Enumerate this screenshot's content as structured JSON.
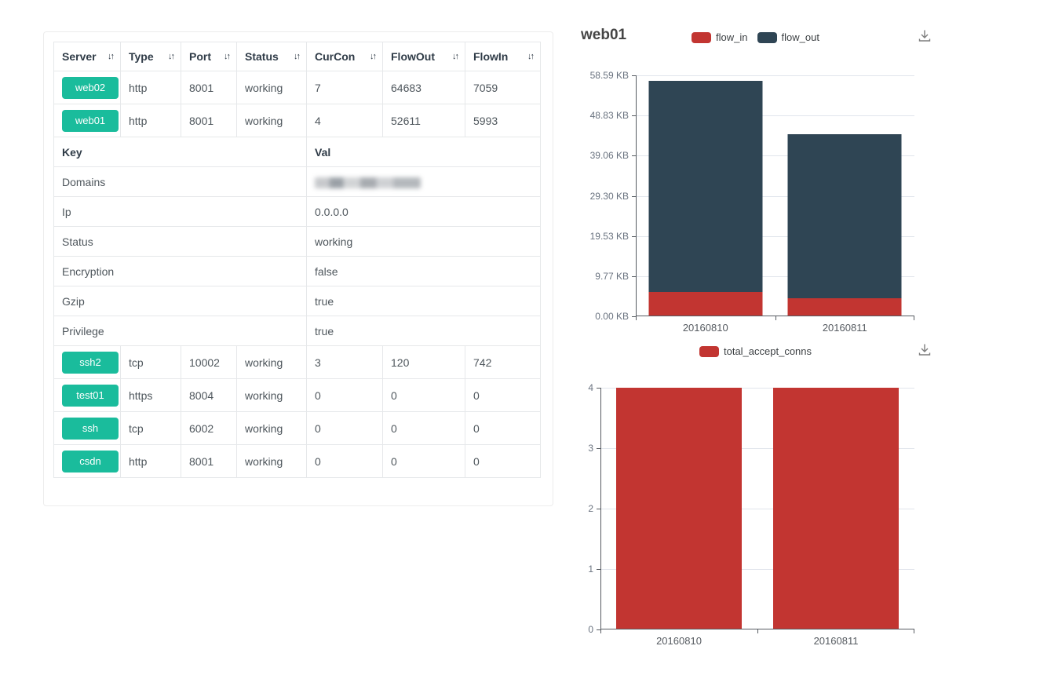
{
  "server_panel": {
    "sort_icon_glyph": "↓↑",
    "columns": [
      {
        "label": "Server"
      },
      {
        "label": "Type"
      },
      {
        "label": "Port"
      },
      {
        "label": "Status"
      },
      {
        "label": "CurCon"
      },
      {
        "label": "FlowOut"
      },
      {
        "label": "FlowIn"
      }
    ],
    "rows_top": [
      {
        "server": "web02",
        "type": "http",
        "port": "8001",
        "status": "working",
        "curcon": "7",
        "flowout": "64683",
        "flowin": "7059"
      },
      {
        "server": "web01",
        "type": "http",
        "port": "8001",
        "status": "working",
        "curcon": "4",
        "flowout": "52611",
        "flowin": "5993"
      }
    ],
    "detail": {
      "key_header": "Key",
      "val_header": "Val",
      "rows": [
        {
          "key": "Domains",
          "val": "",
          "redacted": true
        },
        {
          "key": "Ip",
          "val": "0.0.0.0"
        },
        {
          "key": "Status",
          "val": "working"
        },
        {
          "key": "Encryption",
          "val": "false"
        },
        {
          "key": "Gzip",
          "val": "true"
        },
        {
          "key": "Privilege",
          "val": "true"
        }
      ]
    },
    "rows_bottom": [
      {
        "server": "ssh2",
        "type": "tcp",
        "port": "10002",
        "status": "working",
        "curcon": "3",
        "flowout": "120",
        "flowin": "742"
      },
      {
        "server": "test01",
        "type": "https",
        "port": "8004",
        "status": "working",
        "curcon": "0",
        "flowout": "0",
        "flowin": "0"
      },
      {
        "server": "ssh",
        "type": "tcp",
        "port": "6002",
        "status": "working",
        "curcon": "0",
        "flowout": "0",
        "flowin": "0"
      },
      {
        "server": "csdn",
        "type": "http",
        "port": "8001",
        "status": "working",
        "curcon": "0",
        "flowout": "0",
        "flowin": "0"
      }
    ],
    "colors": {
      "badge": "#1abc9c",
      "badge_text": "#ffffff"
    }
  },
  "chart_data": [
    {
      "type": "bar",
      "stacked": true,
      "title": "web01",
      "categories": [
        "20160810",
        "20160811"
      ],
      "series": [
        {
          "name": "flow_in",
          "color": "#c23531",
          "values": [
            5993,
            4500
          ]
        },
        {
          "name": "flow_out",
          "color": "#2f4554",
          "values": [
            52611,
            40800
          ]
        }
      ],
      "y_axis": {
        "ticks_bottom_up": [
          "0.00 KB",
          "9.77 KB",
          "19.53 KB",
          "29.30 KB",
          "39.06 KB",
          "48.83 KB",
          "58.59 KB"
        ],
        "max": 60000,
        "unit_note": "KB"
      },
      "ylim_kb": [
        0,
        58.59
      ],
      "legend_position": "top-center",
      "grid": true,
      "has_download_button": true
    },
    {
      "type": "bar",
      "stacked": false,
      "title": "",
      "categories": [
        "20160810",
        "20160811"
      ],
      "series": [
        {
          "name": "total_accept_conns",
          "color": "#c23531",
          "values": [
            4,
            4
          ]
        }
      ],
      "y_axis": {
        "ticks_bottom_up": [
          "0",
          "1",
          "2",
          "3",
          "4"
        ],
        "max": 4
      },
      "ylim": [
        0,
        4
      ],
      "legend_position": "top-center",
      "grid": true,
      "has_download_button": true
    }
  ]
}
